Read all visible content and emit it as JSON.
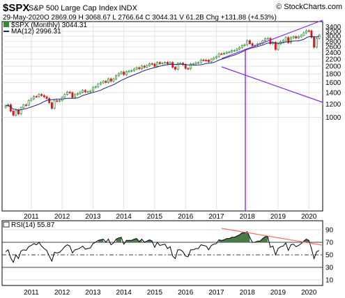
{
  "header": {
    "symbol": "$SPX",
    "name": "S&P 500 Large Cap Index",
    "exchange": "INDX",
    "watermark": "© StockCharts.com",
    "date": "29-May-2020",
    "ohlc_line": "O 2869.09  H 3068.67  L 2766.64  C 3044.31  V 61.2B  Chg +131.88 (+4.53%)",
    "open_label": "O",
    "open": "2869.09",
    "high_label": "H",
    "high": "3068.67",
    "low_label": "L",
    "low": "2766.64",
    "close_label": "C",
    "close": "3044.31",
    "volume_label": "V",
    "volume": "61.2B",
    "change_label": "Chg",
    "change": "+131.88 (+4.53%)"
  },
  "legend": {
    "price": "$SPX (Monthly) 3044.31",
    "ma": "MA(12) 2996.31"
  },
  "colors": {
    "up_candle": "#2e8b2e",
    "down_candle": "#cc1f1f",
    "ma_line": "#1a237e",
    "channel": "#8a2be2",
    "rsi_fill": "#4a7a4a",
    "rsi_trend": "#ff6b6b",
    "grid": "#d8d8d8"
  },
  "chart_data": {
    "type": "candlestick",
    "period": "monthly",
    "x": [
      "2010-03",
      "2010-04",
      "2010-05",
      "2010-06",
      "2010-07",
      "2010-08",
      "2010-09",
      "2010-10",
      "2010-11",
      "2010-12",
      "2011-01",
      "2011-02",
      "2011-03",
      "2011-04",
      "2011-05",
      "2011-06",
      "2011-07",
      "2011-08",
      "2011-09",
      "2011-10",
      "2011-11",
      "2011-12",
      "2012-01",
      "2012-02",
      "2012-03",
      "2012-04",
      "2012-05",
      "2012-06",
      "2012-07",
      "2012-08",
      "2012-09",
      "2012-10",
      "2012-11",
      "2012-12",
      "2013-01",
      "2013-02",
      "2013-03",
      "2013-04",
      "2013-05",
      "2013-06",
      "2013-07",
      "2013-08",
      "2013-09",
      "2013-10",
      "2013-11",
      "2013-12",
      "2014-01",
      "2014-02",
      "2014-03",
      "2014-04",
      "2014-05",
      "2014-06",
      "2014-07",
      "2014-08",
      "2014-09",
      "2014-10",
      "2014-11",
      "2014-12",
      "2015-01",
      "2015-02",
      "2015-03",
      "2015-04",
      "2015-05",
      "2015-06",
      "2015-07",
      "2015-08",
      "2015-09",
      "2015-10",
      "2015-11",
      "2015-12",
      "2016-01",
      "2016-02",
      "2016-03",
      "2016-04",
      "2016-05",
      "2016-06",
      "2016-07",
      "2016-08",
      "2016-09",
      "2016-10",
      "2016-11",
      "2016-12",
      "2017-01",
      "2017-02",
      "2017-03",
      "2017-04",
      "2017-05",
      "2017-06",
      "2017-07",
      "2017-08",
      "2017-09",
      "2017-10",
      "2017-11",
      "2017-12",
      "2018-01",
      "2018-02",
      "2018-03",
      "2018-04",
      "2018-05",
      "2018-06",
      "2018-07",
      "2018-08",
      "2018-09",
      "2018-10",
      "2018-11",
      "2018-12",
      "2019-01",
      "2019-02",
      "2019-03",
      "2019-04",
      "2019-05",
      "2019-06",
      "2019-07",
      "2019-08",
      "2019-09",
      "2019-10",
      "2019-11",
      "2019-12",
      "2020-01",
      "2020-02",
      "2020-03",
      "2020-04",
      "2020-05"
    ],
    "close": [
      1169,
      1187,
      1089,
      1031,
      1102,
      1049,
      1141,
      1183,
      1181,
      1258,
      1286,
      1327,
      1326,
      1364,
      1345,
      1321,
      1292,
      1219,
      1131,
      1253,
      1247,
      1258,
      1312,
      1366,
      1408,
      1398,
      1310,
      1362,
      1379,
      1406,
      1441,
      1412,
      1416,
      1426,
      1498,
      1515,
      1569,
      1598,
      1631,
      1606,
      1686,
      1633,
      1682,
      1757,
      1806,
      1848,
      1783,
      1859,
      1872,
      1884,
      1924,
      1960,
      1931,
      2003,
      1972,
      2018,
      2068,
      2059,
      1995,
      2105,
      2068,
      2086,
      2107,
      2063,
      2104,
      1972,
      1920,
      2079,
      2080,
      2044,
      1940,
      1932,
      2060,
      2065,
      2097,
      2099,
      2174,
      2171,
      2168,
      2126,
      2199,
      2239,
      2279,
      2364,
      2363,
      2384,
      2412,
      2423,
      2470,
      2472,
      2519,
      2575,
      2648,
      2674,
      2824,
      2714,
      2641,
      2648,
      2705,
      2718,
      2816,
      2902,
      2914,
      2712,
      2760,
      2507,
      2704,
      2784,
      2834,
      2946,
      2752,
      2942,
      2980,
      2926,
      2977,
      3038,
      3141,
      3231,
      3226,
      2954,
      2585,
      2912,
      3044
    ],
    "ma12_latest": 2996.31,
    "rsi14_latest": 55.87,
    "y_scale": "log",
    "ylim": [
      950,
      3450
    ],
    "y_ticks": [
      1000,
      1200,
      1400,
      1600,
      1800,
      2000,
      2200,
      2400,
      2600,
      2800,
      3000,
      3200,
      3400
    ],
    "x_ticks": [
      "2011",
      "2012",
      "2013",
      "2014",
      "2015",
      "2016",
      "2017",
      "2018",
      "2019",
      "2020"
    ],
    "rsi": [
      55,
      58,
      45,
      38,
      50,
      44,
      56,
      58,
      57,
      63,
      65,
      68,
      66,
      70,
      64,
      60,
      57,
      48,
      40,
      54,
      53,
      54,
      58,
      63,
      66,
      64,
      53,
      58,
      59,
      61,
      64,
      59,
      60,
      61,
      68,
      70,
      73,
      74,
      75,
      70,
      75,
      66,
      69,
      75,
      77,
      78,
      67,
      73,
      73,
      73,
      75,
      76,
      71,
      75,
      70,
      72,
      74,
      72,
      62,
      70,
      65,
      66,
      67,
      60,
      63,
      48,
      44,
      58,
      58,
      55,
      48,
      47,
      58,
      58,
      60,
      60,
      66,
      65,
      64,
      58,
      65,
      67,
      68,
      74,
      73,
      74,
      76,
      76,
      78,
      78,
      80,
      82,
      85,
      85,
      87,
      78,
      70,
      70,
      72,
      72,
      76,
      79,
      79,
      62,
      64,
      50,
      60,
      63,
      64,
      69,
      57,
      66,
      67,
      63,
      65,
      68,
      72,
      75,
      73,
      60,
      44,
      55,
      57
    ],
    "rsi_levels": [
      90,
      70,
      50,
      30,
      10
    ],
    "rsi_label": "RSI(14) 55.87",
    "annotations": [
      "upper channel line",
      "lower channel line",
      "vertical marker 2018",
      "RSI divergence trendline"
    ]
  }
}
